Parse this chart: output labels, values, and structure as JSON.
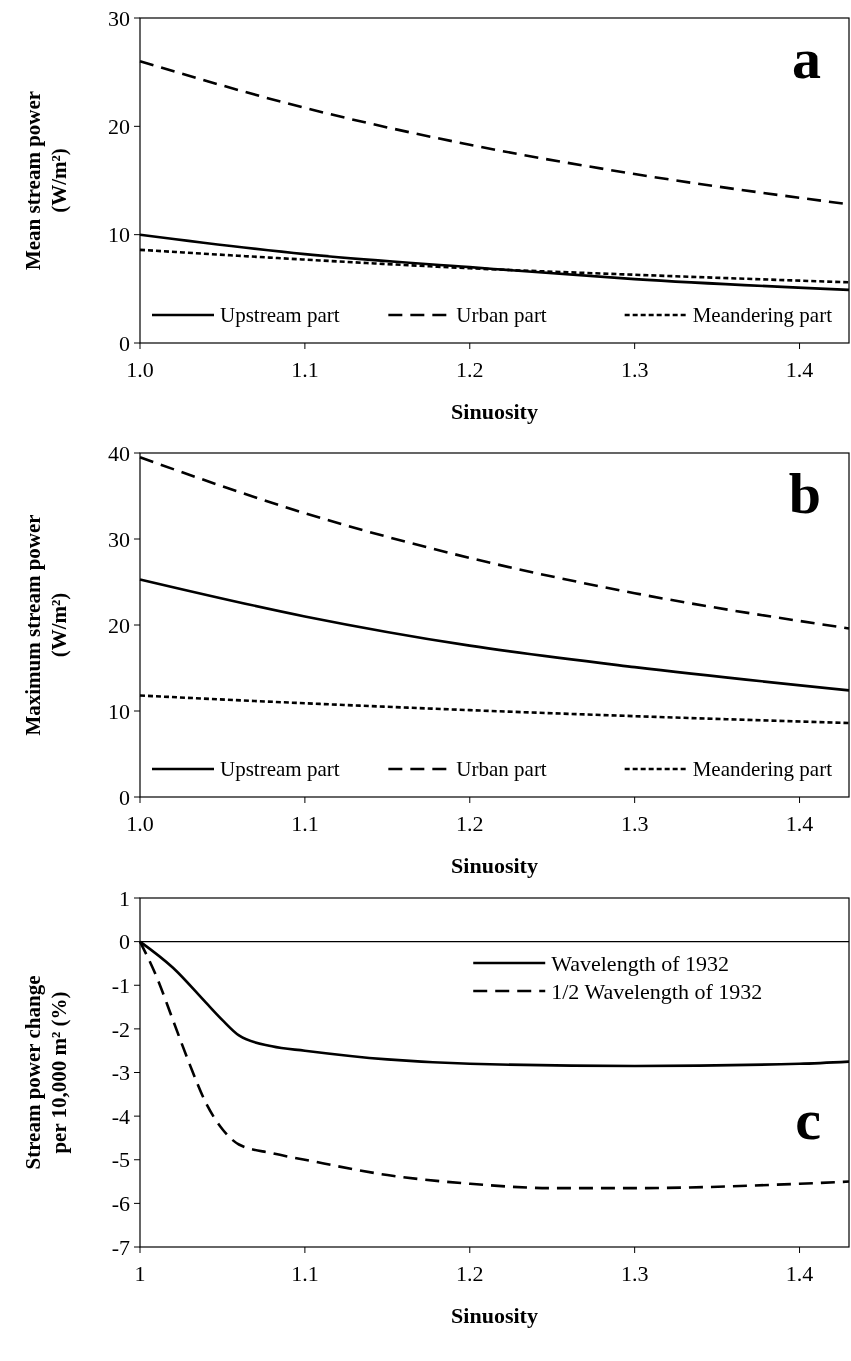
{
  "chart_data": [
    {
      "type": "line",
      "ylabel": "Mean stream power\n(W/m²)",
      "xlabel": "Sinuosity",
      "annotations": [
        "a"
      ],
      "xlim": [
        1,
        1.43
      ],
      "ylim": [
        0,
        30
      ],
      "xticks": [
        {
          "value": 1,
          "label": "1.0"
        },
        {
          "value": 1.1,
          "label": "1.1"
        },
        {
          "value": 1.2,
          "label": "1.2"
        },
        {
          "value": 1.3,
          "label": "1.3"
        },
        {
          "value": 1.4,
          "label": "1.4"
        }
      ],
      "yticks": [
        0,
        10,
        20,
        30
      ],
      "grid": false,
      "legend": "bottom",
      "marker": "none",
      "x": [
        1.0,
        1.1,
        1.2,
        1.3,
        1.43
      ],
      "series": [
        {
          "name": "Upstream part",
          "color": "#000000",
          "line_style": "solid",
          "values": [
            10,
            8.2,
            7.0,
            5.9,
            4.9
          ]
        },
        {
          "name": "Urban part",
          "color": "#000000",
          "line_style": "dashed",
          "values": [
            26,
            21.7,
            18.3,
            15.6,
            12.8
          ]
        },
        {
          "name": "Meandering part",
          "color": "#000000",
          "line_style": "dotted",
          "values": [
            8.6,
            7.7,
            6.9,
            6.3,
            5.6
          ]
        }
      ]
    },
    {
      "type": "line",
      "ylabel": "Maximum stream power\n(W/m²)",
      "xlabel": "Sinuosity",
      "annotations": [
        "b"
      ],
      "xlim": [
        1,
        1.43
      ],
      "ylim": [
        0,
        40
      ],
      "xticks": [
        {
          "value": 1,
          "label": "1.0"
        },
        {
          "value": 1.1,
          "label": "1.1"
        },
        {
          "value": 1.2,
          "label": "1.2"
        },
        {
          "value": 1.3,
          "label": "1.3"
        },
        {
          "value": 1.4,
          "label": "1.4"
        }
      ],
      "yticks": [
        0,
        10,
        20,
        30,
        40
      ],
      "grid": false,
      "legend": "bottom",
      "marker": "none",
      "x": [
        1.0,
        1.1,
        1.2,
        1.3,
        1.43
      ],
      "series": [
        {
          "name": "Upstream part",
          "color": "#000000",
          "line_style": "solid",
          "values": [
            25.3,
            21.0,
            17.6,
            15.1,
            12.4
          ]
        },
        {
          "name": "Urban part",
          "color": "#000000",
          "line_style": "dashed",
          "values": [
            39.5,
            33,
            27.8,
            23.7,
            19.6
          ]
        },
        {
          "name": "Meandering part",
          "color": "#000000",
          "line_style": "dotted",
          "values": [
            11.8,
            10.9,
            10.1,
            9.4,
            8.6
          ]
        }
      ]
    },
    {
      "type": "line",
      "ylabel": "Stream power change\nper 10,000 m² (%)",
      "xlabel": "Sinuosity",
      "annotations": [
        "c"
      ],
      "xlim": [
        1,
        1.43
      ],
      "ylim": [
        -7,
        1
      ],
      "xticks": [
        1,
        1.1,
        1.2,
        1.3,
        1.4
      ],
      "yticks": [
        -7,
        -6,
        -5,
        -4,
        -3,
        -2,
        -1,
        0,
        1
      ],
      "grid": false,
      "legend": "top right",
      "marker": "none",
      "ref_lines": [
        {
          "axis": "y",
          "value": 0,
          "color": "#000000"
        }
      ],
      "series": [
        {
          "name": "Wavelength of 1932",
          "color": "#000000",
          "line_style": "solid",
          "x": [
            1.0,
            1.02,
            1.04,
            1.05,
            1.06,
            1.08,
            1.1,
            1.15,
            1.2,
            1.3,
            1.4,
            1.43
          ],
          "values": [
            0,
            -0.6,
            -1.4,
            -1.8,
            -2.15,
            -2.4,
            -2.5,
            -2.7,
            -2.8,
            -2.85,
            -2.8,
            -2.75
          ]
        },
        {
          "name": "1/2 Wavelength of 1932",
          "color": "#000000",
          "line_style": "dashed",
          "x": [
            1.0,
            1.01,
            1.02,
            1.03,
            1.04,
            1.05,
            1.06,
            1.08,
            1.1,
            1.15,
            1.2,
            1.25,
            1.3,
            1.4,
            1.43
          ],
          "values": [
            0,
            -0.8,
            -1.8,
            -2.8,
            -3.7,
            -4.3,
            -4.65,
            -4.85,
            -5.0,
            -5.35,
            -5.55,
            -5.65,
            -5.65,
            -5.55,
            -5.5
          ]
        }
      ]
    }
  ]
}
